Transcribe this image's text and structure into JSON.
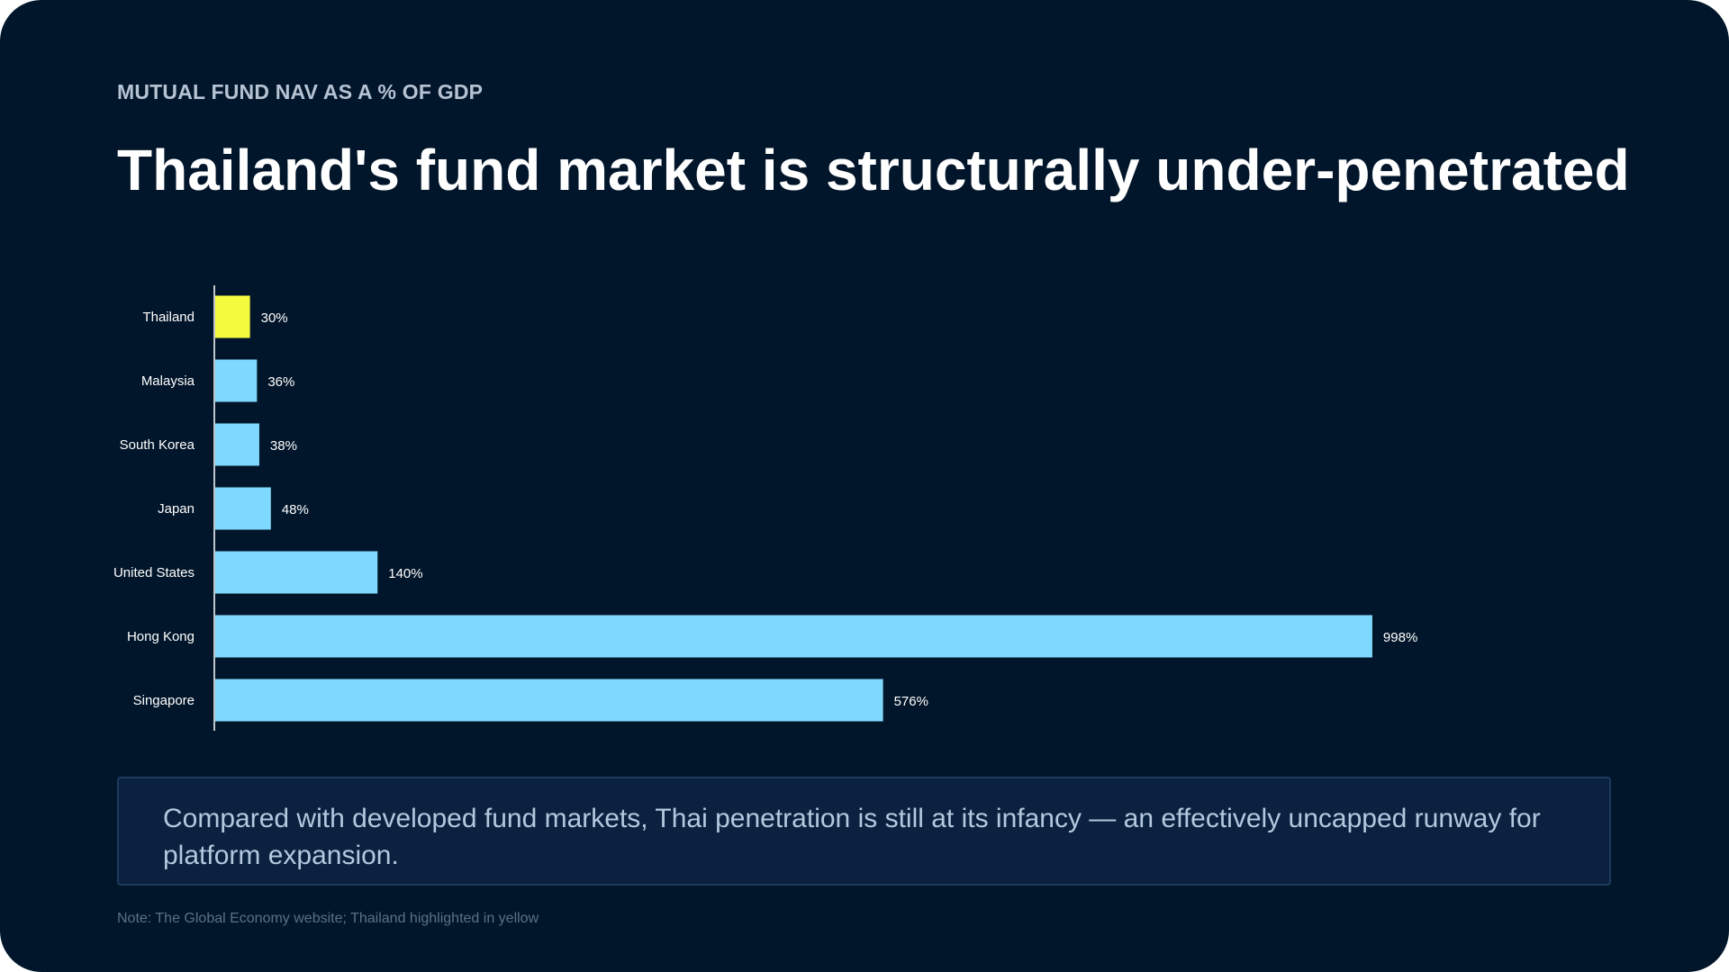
{
  "slide": {
    "eyebrow": "MUTUAL FUND NAV AS A % OF GDP",
    "headline": "Thailand's fund market is structurally under-penetrated",
    "callout": "Compared with developed fund markets, Thai penetration is still at its infancy — an effectively uncapped runway for platform expansion.",
    "note": "Note: The Global Economy website; Thailand highlighted in yellow"
  },
  "colors": {
    "background": "#02162b",
    "bar_default": "#7fd8fe",
    "bar_highlight": "#f4fa3e",
    "axis": "#ffffff",
    "label": "#ffffff"
  },
  "chart_data": {
    "type": "bar",
    "orientation": "horizontal",
    "categories": [
      "Thailand",
      "Malaysia",
      "South Korea",
      "Japan",
      "United States",
      "Hong Kong",
      "Singapore"
    ],
    "values": [
      30,
      36,
      38,
      48,
      140,
      998,
      576
    ],
    "data_labels": [
      "30%",
      "36%",
      "38%",
      "48%",
      "140%",
      "998%",
      "576%"
    ],
    "highlight": [
      "Thailand"
    ],
    "unit": "%",
    "xlim": [
      0,
      1000
    ],
    "grid": false,
    "legend": "none"
  }
}
